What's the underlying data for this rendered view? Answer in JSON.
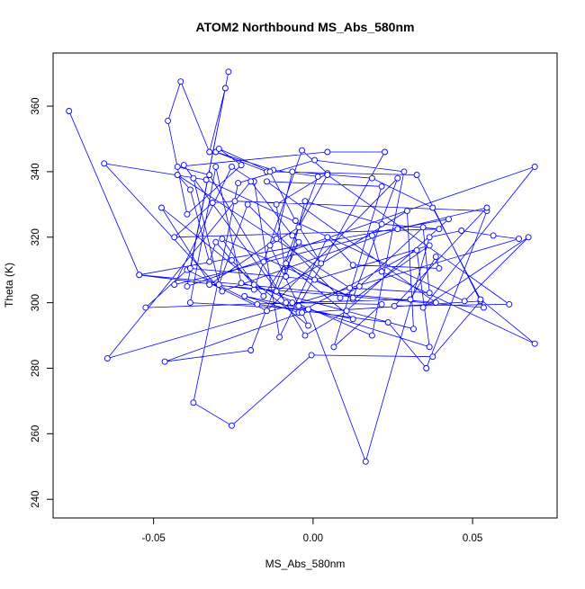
{
  "chart_data": {
    "type": "line",
    "title": "ATOM2 Northbound MS_Abs_580nm",
    "xlabel": "MS_Abs_580nm",
    "ylabel": "Theta (K)",
    "xlim": [
      -0.0815,
      0.0765
    ],
    "ylim": [
      234.3,
      376.2
    ],
    "xticks": [
      -0.05,
      0.0,
      0.05
    ],
    "xtick_labels": [
      "-0.05",
      "0.00",
      "0.05"
    ],
    "yticks": [
      240,
      260,
      280,
      300,
      320,
      340,
      360
    ],
    "yticks_labels": [
      "240",
      "260",
      "280",
      "300",
      "320",
      "340",
      "360"
    ],
    "grid": false,
    "legend": "none",
    "line_color": "#0000ff",
    "markers": "open-circle",
    "points": [
      [
        -0.0765,
        358.5
      ],
      [
        -0.0545,
        308.5
      ],
      [
        -0.0185,
        304.0
      ],
      [
        -0.0155,
        312.5
      ],
      [
        -0.0035,
        346.5
      ],
      [
        0.0045,
        339.5
      ],
      [
        -0.0115,
        330.0
      ],
      [
        -0.0085,
        308.0
      ],
      [
        -0.0025,
        331.0
      ],
      [
        0.0215,
        324.0
      ],
      [
        0.0395,
        322.5
      ],
      [
        -0.0435,
        320.0
      ],
      [
        -0.0315,
        330.5
      ],
      [
        -0.0245,
        331.0
      ],
      [
        0.0545,
        328.0
      ],
      [
        0.0355,
        280.0
      ],
      [
        0.0235,
        294.0
      ],
      [
        -0.0175,
        299.5
      ],
      [
        -0.0395,
        310.0
      ],
      [
        -0.0525,
        298.5
      ],
      [
        -0.0065,
        300.0
      ],
      [
        0.0215,
        299.5
      ],
      [
        0.0065,
        286.5
      ],
      [
        0.0215,
        335.5
      ],
      [
        -0.0145,
        337.0
      ],
      [
        0.0385,
        300.0
      ],
      [
        -0.0545,
        308.5
      ],
      [
        0.0425,
        325.5
      ],
      [
        0.0105,
        297.5
      ],
      [
        -0.0025,
        290.0
      ],
      [
        -0.0325,
        339.0
      ],
      [
        -0.0425,
        341.5
      ],
      [
        0.0045,
        346.0
      ],
      [
        0.0225,
        346.0
      ],
      [
        -0.0045,
        299.0
      ],
      [
        0.0365,
        286.5
      ],
      [
        0.0325,
        316.0
      ],
      [
        -0.0045,
        297.0
      ],
      [
        -0.0215,
        302.0
      ],
      [
        0.0125,
        295.0
      ],
      [
        -0.0085,
        312.0
      ],
      [
        0.0125,
        301.0
      ],
      [
        0.0365,
        317.5
      ],
      [
        0.0005,
        307.0
      ],
      [
        -0.0385,
        310.5
      ],
      [
        -0.0265,
        370.5
      ],
      [
        -0.0395,
        305.0
      ],
      [
        0.0695,
        341.5
      ],
      [
        0.0345,
        298.5
      ],
      [
        0.0675,
        320.0
      ],
      [
        0.0475,
        300.5
      ],
      [
        -0.0335,
        337.5
      ],
      [
        -0.0655,
        342.5
      ],
      [
        -0.0285,
        303.5
      ],
      [
        0.0265,
        322.5
      ],
      [
        0.0545,
        329.0
      ],
      [
        0.0255,
        299.0
      ],
      [
        0.0615,
        299.5
      ],
      [
        0.0045,
        339.0
      ],
      [
        -0.0045,
        323.0
      ],
      [
        -0.0135,
        317.5
      ],
      [
        -0.0015,
        293.0
      ],
      [
        -0.0475,
        329.0
      ],
      [
        -0.0325,
        306.0
      ],
      [
        -0.0145,
        297.5
      ],
      [
        0.0265,
        338.0
      ],
      [
        0.0125,
        301.5
      ],
      [
        -0.0285,
        319.5
      ],
      [
        -0.0185,
        305.5
      ],
      [
        0.0185,
        290.0
      ],
      [
        0.0285,
        340.0
      ],
      [
        0.0005,
        343.5
      ],
      [
        -0.0235,
        336.5
      ],
      [
        -0.0375,
        269.5
      ],
      [
        -0.0255,
        262.5
      ],
      [
        -0.0005,
        284.0
      ],
      [
        0.0375,
        283.5
      ],
      [
        0.0525,
        300.5
      ],
      [
        -0.0035,
        297.0
      ],
      [
        -0.0465,
        282.0
      ],
      [
        -0.0195,
        285.5
      ],
      [
        0.0015,
        338.5
      ],
      [
        -0.0125,
        340.5
      ],
      [
        -0.0305,
        346.0
      ],
      [
        -0.0145,
        340.0
      ],
      [
        0.0325,
        339.0
      ],
      [
        0.0535,
        298.5
      ],
      [
        -0.0325,
        305.5
      ],
      [
        -0.0115,
        319.5
      ],
      [
        -0.0065,
        340.0
      ],
      [
        0.0185,
        338.0
      ],
      [
        0.0375,
        329.0
      ],
      [
        0.0525,
        301.0
      ],
      [
        0.0695,
        287.5
      ],
      [
        0.0215,
        309.5
      ],
      [
        0.0185,
        320.5
      ],
      [
        -0.0435,
        305.5
      ],
      [
        -0.0255,
        341.5
      ],
      [
        -0.0185,
        337.0
      ],
      [
        -0.0105,
        289.5
      ],
      [
        0.0045,
        320.0
      ],
      [
        0.0125,
        311.5
      ],
      [
        0.0395,
        310.5
      ],
      [
        0.0385,
        314.0
      ],
      [
        0.0305,
        301.0
      ],
      [
        -0.0085,
        300.0
      ],
      [
        -0.0405,
        342.0
      ],
      [
        -0.0375,
        338.0
      ],
      [
        -0.0295,
        305.5
      ],
      [
        -0.0205,
        330.0
      ],
      [
        0.0085,
        301.5
      ],
      [
        0.0145,
        305.0
      ],
      [
        0.0345,
        323.0
      ],
      [
        0.0365,
        303.0
      ],
      [
        0.0115,
        304.5
      ],
      [
        -0.0425,
        339.0
      ],
      [
        -0.0385,
        334.5
      ],
      [
        -0.0325,
        312.5
      ],
      [
        -0.0305,
        318.5
      ],
      [
        -0.0255,
        313.0
      ],
      [
        -0.0155,
        302.0
      ],
      [
        -0.0045,
        318.5
      ],
      [
        -0.0115,
        303.5
      ],
      [
        0.0295,
        328.0
      ],
      [
        0.0315,
        292.0
      ],
      [
        -0.0225,
        306.0
      ],
      [
        -0.0305,
        341.5
      ],
      [
        -0.0385,
        300.0
      ],
      [
        -0.0015,
        298.0
      ],
      [
        0.0165,
        251.5
      ],
      [
        0.0365,
        320.0
      ],
      [
        0.0465,
        322.0
      ],
      [
        0.0565,
        320.5
      ],
      [
        0.0645,
        319.5
      ],
      [
        -0.0645,
        283.0
      ],
      [
        -0.0195,
        337.0
      ],
      [
        -0.0065,
        320.5
      ],
      [
        0.0025,
        312.0
      ],
      [
        -0.0055,
        325.0
      ],
      [
        -0.0135,
        340.0
      ],
      [
        -0.0295,
        347.0
      ],
      [
        -0.0225,
        342.0
      ],
      [
        -0.0395,
        327.0
      ],
      [
        -0.0455,
        355.5
      ],
      [
        -0.0415,
        367.5
      ],
      [
        -0.0325,
        346.0
      ],
      [
        -0.0275,
        365.5
      ]
    ]
  }
}
